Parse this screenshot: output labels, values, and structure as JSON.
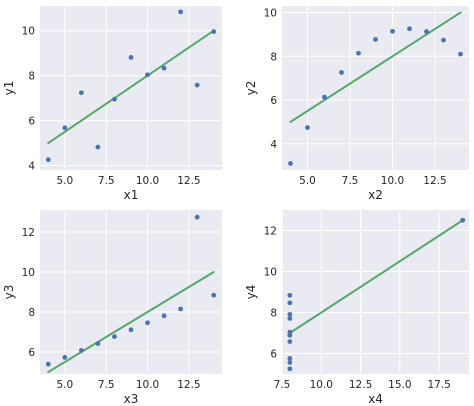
{
  "style": {
    "point_color": "#4c72b0",
    "line_color": "#55a868",
    "background": "#eaeaf2"
  },
  "chart_data": [
    {
      "type": "scatter",
      "xlabel": "x1",
      "ylabel": "y1",
      "xlim": [
        3.5,
        14.5
      ],
      "ylim": [
        3.8,
        11.1
      ],
      "xticks": [
        5.0,
        7.5,
        10.0,
        12.5
      ],
      "xtick_labels": [
        "5.0",
        "7.5",
        "10.0",
        "12.5"
      ],
      "yticks": [
        4,
        6,
        8,
        10
      ],
      "ytick_labels": [
        "4",
        "6",
        "8",
        "10"
      ],
      "grid": true,
      "series": [
        {
          "x": [
            4,
            5,
            6,
            7,
            8,
            9,
            10,
            11,
            12,
            13,
            14
          ],
          "y": [
            4.26,
            5.68,
            7.24,
            4.82,
            6.95,
            8.81,
            8.04,
            8.33,
            10.84,
            7.58,
            9.96
          ]
        }
      ],
      "fit_line": {
        "x": [
          4,
          14
        ],
        "y": [
          5.0,
          10.0
        ]
      }
    },
    {
      "type": "scatter",
      "xlabel": "x2",
      "ylabel": "y2",
      "xlim": [
        3.5,
        14.5
      ],
      "ylim": [
        2.8,
        10.3
      ],
      "xticks": [
        5.0,
        7.5,
        10.0,
        12.5
      ],
      "xtick_labels": [
        "5.0",
        "7.5",
        "10.0",
        "12.5"
      ],
      "yticks": [
        4,
        6,
        8,
        10
      ],
      "ytick_labels": [
        "4",
        "6",
        "8",
        "10"
      ],
      "grid": true,
      "series": [
        {
          "x": [
            4,
            5,
            6,
            7,
            8,
            9,
            10,
            11,
            12,
            13,
            14
          ],
          "y": [
            3.1,
            4.74,
            6.13,
            7.26,
            8.14,
            8.77,
            9.14,
            9.26,
            9.13,
            8.74,
            8.1
          ]
        }
      ],
      "fit_line": {
        "x": [
          4,
          14
        ],
        "y": [
          5.0,
          10.0
        ]
      }
    },
    {
      "type": "scatter",
      "xlabel": "x3",
      "ylabel": "y3",
      "xlim": [
        3.5,
        14.5
      ],
      "ylim": [
        4.9,
        13.1
      ],
      "xticks": [
        5.0,
        7.5,
        10.0,
        12.5
      ],
      "xtick_labels": [
        "5.0",
        "7.5",
        "10.0",
        "12.5"
      ],
      "yticks": [
        6,
        8,
        10,
        12
      ],
      "ytick_labels": [
        "6",
        "8",
        "10",
        "12"
      ],
      "grid": true,
      "series": [
        {
          "x": [
            4,
            5,
            6,
            7,
            8,
            9,
            10,
            11,
            12,
            13,
            14
          ],
          "y": [
            5.39,
            5.73,
            6.08,
            6.42,
            6.77,
            7.11,
            7.46,
            7.81,
            8.15,
            12.74,
            8.84
          ]
        }
      ],
      "fit_line": {
        "x": [
          4,
          14
        ],
        "y": [
          5.0,
          10.0
        ]
      }
    },
    {
      "type": "scatter",
      "xlabel": "x4",
      "ylabel": "y4",
      "xlim": [
        7.5,
        19.4
      ],
      "ylim": [
        5.0,
        13.0
      ],
      "xticks": [
        7.5,
        10.0,
        12.5,
        15.0,
        17.5
      ],
      "xtick_labels": [
        "7.5",
        "10.0",
        "12.5",
        "15.0",
        "17.5"
      ],
      "yticks": [
        6,
        8,
        10,
        12
      ],
      "ytick_labels": [
        "6",
        "8",
        "10",
        "12"
      ],
      "grid": true,
      "series": [
        {
          "x": [
            8,
            8,
            8,
            8,
            8,
            8,
            8,
            19,
            8,
            8,
            8
          ],
          "y": [
            6.58,
            5.76,
            7.71,
            8.84,
            8.47,
            7.04,
            5.25,
            12.5,
            5.56,
            7.91,
            6.89
          ]
        }
      ],
      "fit_line": {
        "x": [
          8,
          19
        ],
        "y": [
          7.0,
          12.5
        ]
      }
    }
  ]
}
